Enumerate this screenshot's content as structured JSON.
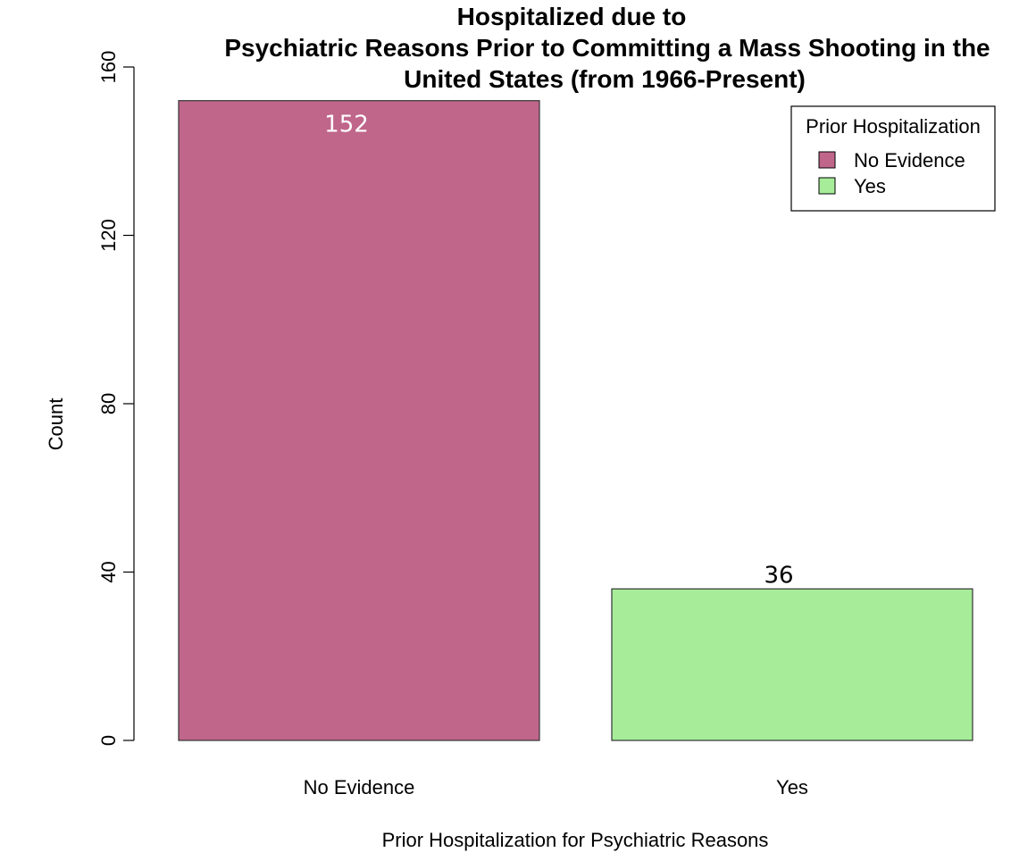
{
  "chart_data": {
    "type": "bar",
    "title_lines": [
      "Hospitalized due to",
      "Psychiatric Reasons Prior to Committing a Mass Shooting in the",
      "United States (from 1966-Present)"
    ],
    "xlabel": "Prior Hospitalization for Psychiatric Reasons",
    "ylabel": "Count",
    "categories": [
      "No Evidence",
      "Yes"
    ],
    "values": [
      152,
      36
    ],
    "data_labels": [
      "152",
      "36"
    ],
    "colors": [
      "#c0668b",
      "#a6ec99"
    ],
    "data_label_colors": [
      "#ffffff",
      "#000000"
    ],
    "ylim": [
      0,
      160
    ],
    "yticks": [
      0,
      40,
      80,
      120,
      160
    ],
    "grid": false,
    "legend": {
      "title": "Prior Hospitalization",
      "position": "top-right",
      "entries": [
        {
          "label": "No Evidence",
          "color": "#c0668b"
        },
        {
          "label": "Yes",
          "color": "#a6ec99"
        }
      ]
    }
  }
}
